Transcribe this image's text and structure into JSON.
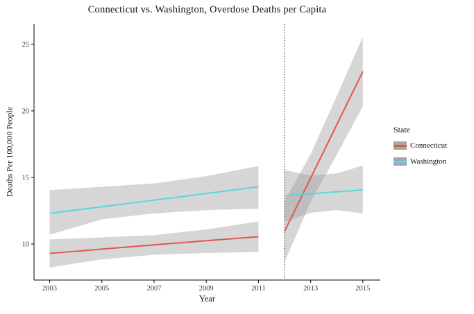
{
  "window": {
    "background": "#ffffff"
  },
  "chart_data": {
    "type": "line",
    "title": "Connecticut vs. Washington, Overdose Deaths per Capita",
    "xlabel": "Year",
    "ylabel": "Deaths Per 100,000 People",
    "x_ticks": [
      2003,
      2005,
      2007,
      2009,
      2011,
      2013,
      2015
    ],
    "y_ticks": [
      10,
      15,
      20,
      25
    ],
    "xlim": [
      2002.4,
      2015.67
    ],
    "ylim": [
      7.3,
      26.5
    ],
    "grid": false,
    "axis_color": "#000000",
    "tick_label_color": "#333333",
    "ribbon_fill": "#999999",
    "ribbon_opacity": 0.4,
    "vline": {
      "x": 2012,
      "style": "dotted",
      "color": "#000000"
    },
    "legend": {
      "title": "State",
      "position": "right",
      "key_fill": "#a6a6a6",
      "entries": [
        {
          "label": "Connecticut",
          "color": "#e0574c"
        },
        {
          "label": "Washington",
          "color": "#56d8de"
        }
      ]
    },
    "series": [
      {
        "name": "Connecticut",
        "color": "#e0574c",
        "segments": [
          {
            "x": [
              2003,
              2005,
              2007,
              2009,
              2011
            ],
            "y": [
              9.3,
              9.62,
              9.94,
              10.25,
              10.55
            ],
            "lower": [
              8.25,
              8.85,
              9.2,
              9.33,
              9.4
            ],
            "upper": [
              10.35,
              10.5,
              10.67,
              11.1,
              11.7
            ]
          },
          {
            "x": [
              2012,
              2013,
              2014,
              2015
            ],
            "y": [
              10.95,
              14.95,
              18.95,
              22.95
            ],
            "lower": [
              8.65,
              13.15,
              16.7,
              20.35
            ],
            "upper": [
              13.25,
              16.75,
              21.1,
              25.55
            ]
          }
        ]
      },
      {
        "name": "Washington",
        "color": "#56d8de",
        "segments": [
          {
            "x": [
              2003,
              2005,
              2007,
              2009,
              2011
            ],
            "y": [
              12.3,
              12.8,
              13.3,
              13.8,
              14.3
            ],
            "lower": [
              10.7,
              11.85,
              12.3,
              12.55,
              12.65
            ],
            "upper": [
              14.05,
              14.3,
              14.55,
              15.1,
              15.85
            ]
          },
          {
            "x": [
              2012,
              2013,
              2014,
              2015
            ],
            "y": [
              13.63,
              13.78,
              13.92,
              14.06
            ],
            "lower": [
              11.65,
              12.35,
              12.55,
              12.3
            ],
            "upper": [
              15.55,
              15.15,
              15.3,
              15.9
            ]
          }
        ]
      }
    ]
  }
}
